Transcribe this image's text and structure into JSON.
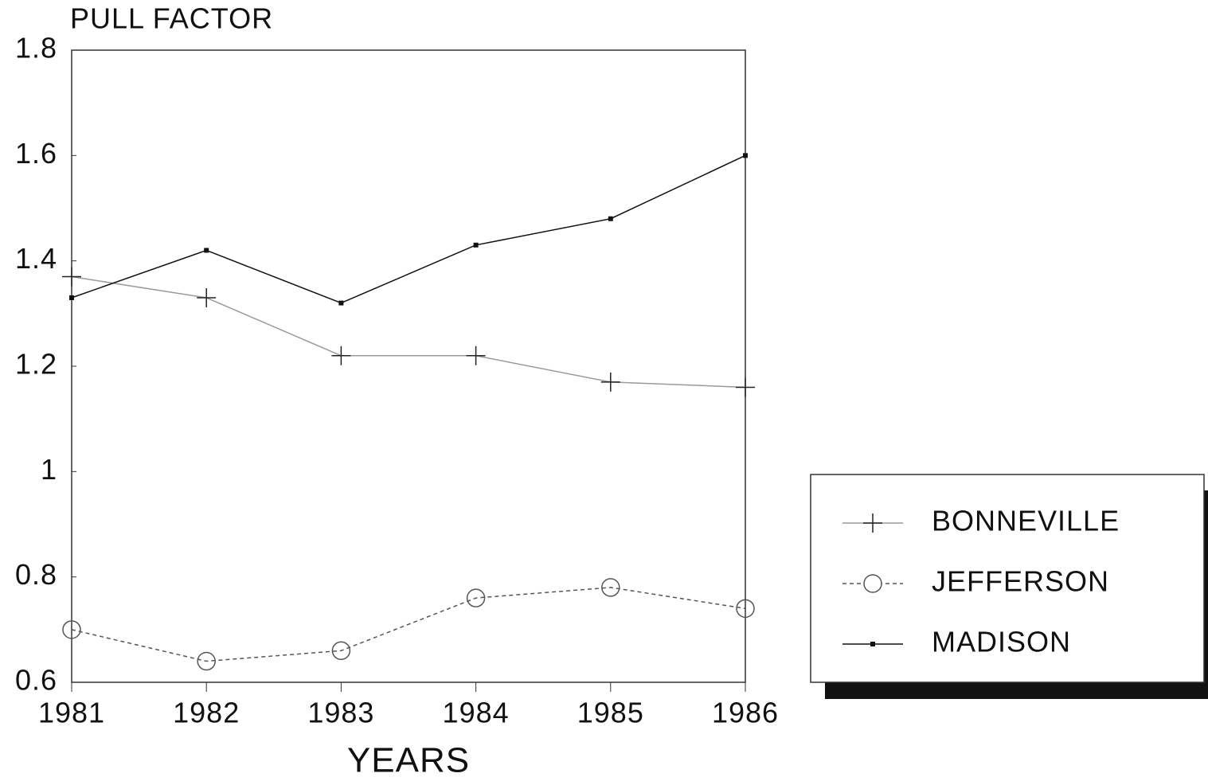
{
  "chart_data": {
    "type": "line",
    "y_label": "PULL FACTOR",
    "x_label": "YEARS",
    "x": [
      1981,
      1982,
      1983,
      1984,
      1985,
      1986
    ],
    "xlim": [
      1981,
      1986
    ],
    "xticks": [
      1981,
      1982,
      1983,
      1984,
      1985,
      1986
    ],
    "ylim": [
      0.6,
      1.8
    ],
    "yticks": [
      0.6,
      0.8,
      1,
      1.2,
      1.4,
      1.6,
      1.8
    ],
    "legend": "right",
    "series": [
      {
        "name": "BONNEVILLE",
        "color": "#9a9a9a",
        "marker": "plus",
        "linestyle": "solid",
        "values": [
          1.37,
          1.33,
          1.22,
          1.22,
          1.17,
          1.16
        ]
      },
      {
        "name": "JEFFERSON",
        "color": "#555555",
        "marker": "circle",
        "linestyle": "dashed",
        "values": [
          0.7,
          0.64,
          0.66,
          0.76,
          0.78,
          0.74
        ]
      },
      {
        "name": "MADISON",
        "color": "#111111",
        "marker": "square",
        "linestyle": "solid",
        "values": [
          1.33,
          1.42,
          1.32,
          1.43,
          1.48,
          1.6
        ]
      }
    ]
  }
}
